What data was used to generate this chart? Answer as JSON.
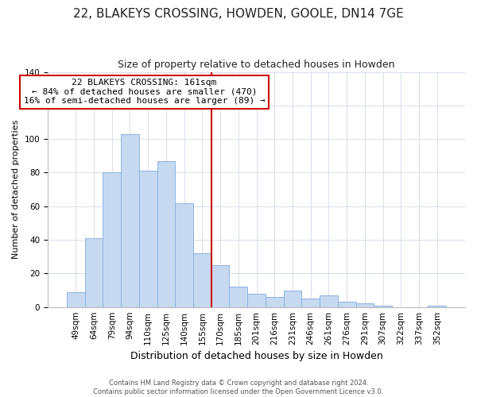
{
  "title": "22, BLAKEYS CROSSING, HOWDEN, GOOLE, DN14 7GE",
  "subtitle": "Size of property relative to detached houses in Howden",
  "xlabel": "Distribution of detached houses by size in Howden",
  "ylabel": "Number of detached properties",
  "bar_labels": [
    "49sqm",
    "64sqm",
    "79sqm",
    "94sqm",
    "110sqm",
    "125sqm",
    "140sqm",
    "155sqm",
    "170sqm",
    "185sqm",
    "201sqm",
    "216sqm",
    "231sqm",
    "246sqm",
    "261sqm",
    "276sqm",
    "291sqm",
    "307sqm",
    "322sqm",
    "337sqm",
    "352sqm"
  ],
  "bar_values": [
    9,
    41,
    80,
    103,
    81,
    87,
    62,
    32,
    25,
    12,
    8,
    6,
    10,
    5,
    7,
    3,
    2,
    1,
    0,
    0,
    1
  ],
  "bar_color": "#c6d9f1",
  "bar_edge_color": "#8db3e2",
  "vline_color": "#cc0000",
  "ylim": [
    0,
    140
  ],
  "yticks": [
    0,
    20,
    40,
    60,
    80,
    100,
    120,
    140
  ],
  "annotation_text": "22 BLAKEYS CROSSING: 161sqm\n← 84% of detached houses are smaller (470)\n16% of semi-detached houses are larger (89) →",
  "annotation_box_color": "#ffffff",
  "annotation_box_edge": "#cc0000",
  "footer1": "Contains HM Land Registry data © Crown copyright and database right 2024.",
  "footer2": "Contains public sector information licensed under the Open Government Licence v3.0.",
  "title_fontsize": 11,
  "subtitle_fontsize": 9,
  "ylabel_fontsize": 8,
  "xlabel_fontsize": 9,
  "tick_fontsize": 7.5,
  "annotation_fontsize": 8,
  "footer_fontsize": 6
}
